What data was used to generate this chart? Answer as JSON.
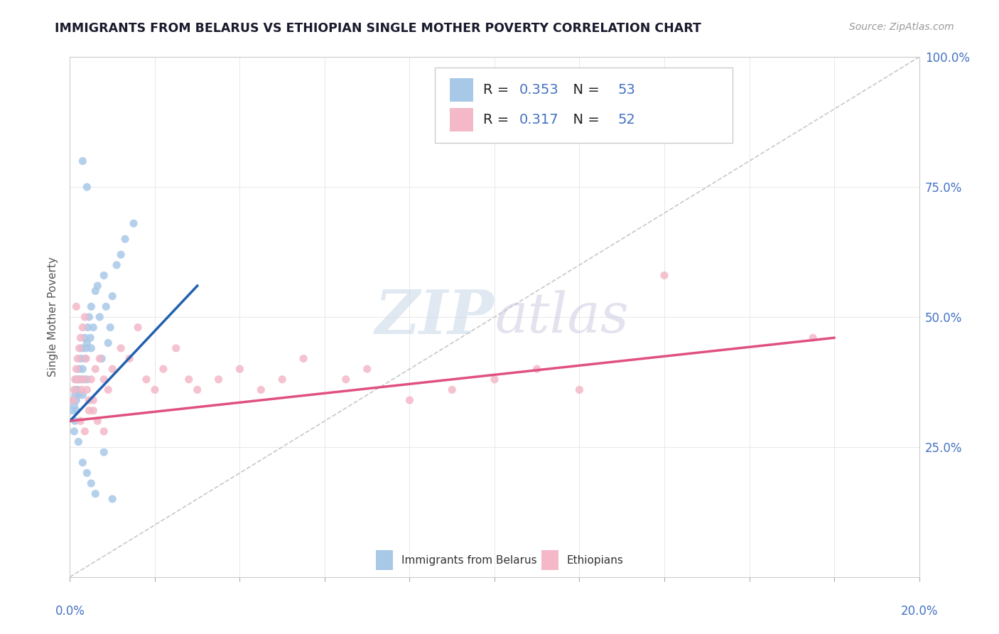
{
  "title": "IMMIGRANTS FROM BELARUS VS ETHIOPIAN SINGLE MOTHER POVERTY CORRELATION CHART",
  "source": "Source: ZipAtlas.com",
  "ylabel": "Single Mother Poverty",
  "legend_label1": "Immigrants from Belarus",
  "legend_label2": "Ethiopians",
  "r1": 0.353,
  "n1": 53,
  "r2": 0.317,
  "n2": 52,
  "color_blue": "#a8c8e8",
  "color_pink": "#f4b8c8",
  "color_blue_line": "#2060b0",
  "color_pink_line": "#e05080",
  "color_ref_line": "#c8c8c8",
  "xlim": [
    0.0,
    20.0
  ],
  "ylim": [
    0.0,
    100.0
  ],
  "blue_line_x": [
    0.0,
    3.0
  ],
  "blue_line_y": [
    30.0,
    56.0
  ],
  "pink_line_x": [
    0.0,
    18.0
  ],
  "pink_line_y": [
    30.0,
    46.0
  ],
  "ref_line_x": [
    0.0,
    20.0
  ],
  "ref_line_y": [
    0.0,
    100.0
  ],
  "blue_scatter_x": [
    0.05,
    0.08,
    0.1,
    0.12,
    0.12,
    0.14,
    0.15,
    0.15,
    0.15,
    0.18,
    0.2,
    0.2,
    0.22,
    0.25,
    0.25,
    0.28,
    0.3,
    0.3,
    0.32,
    0.35,
    0.35,
    0.38,
    0.4,
    0.4,
    0.42,
    0.45,
    0.48,
    0.5,
    0.5,
    0.55,
    0.6,
    0.65,
    0.7,
    0.75,
    0.8,
    0.85,
    0.9,
    0.95,
    1.0,
    1.1,
    1.2,
    1.3,
    1.5,
    0.1,
    0.2,
    0.3,
    0.4,
    0.5,
    0.6,
    0.8,
    1.0,
    0.3,
    0.4
  ],
  "blue_scatter_y": [
    32,
    34,
    33,
    35,
    30,
    36,
    34,
    38,
    32,
    36,
    38,
    35,
    40,
    42,
    38,
    44,
    40,
    35,
    38,
    42,
    46,
    44,
    45,
    38,
    48,
    50,
    46,
    52,
    44,
    48,
    55,
    56,
    50,
    42,
    58,
    52,
    45,
    48,
    54,
    60,
    62,
    65,
    68,
    28,
    26,
    22,
    20,
    18,
    16,
    24,
    15,
    80,
    75
  ],
  "pink_scatter_x": [
    0.08,
    0.1,
    0.12,
    0.15,
    0.18,
    0.2,
    0.22,
    0.25,
    0.28,
    0.3,
    0.32,
    0.35,
    0.38,
    0.4,
    0.45,
    0.5,
    0.55,
    0.6,
    0.7,
    0.8,
    0.9,
    1.0,
    1.2,
    1.4,
    1.6,
    1.8,
    2.0,
    2.2,
    2.5,
    2.8,
    3.0,
    3.5,
    4.0,
    4.5,
    5.0,
    5.5,
    6.5,
    7.0,
    8.0,
    9.0,
    10.0,
    11.0,
    12.0,
    0.15,
    0.25,
    0.35,
    0.45,
    0.55,
    0.65,
    0.8,
    17.5,
    14.0
  ],
  "pink_scatter_y": [
    34,
    36,
    38,
    40,
    42,
    38,
    44,
    46,
    36,
    48,
    38,
    50,
    42,
    36,
    34,
    38,
    32,
    40,
    42,
    38,
    36,
    40,
    44,
    42,
    48,
    38,
    36,
    40,
    44,
    38,
    36,
    38,
    40,
    36,
    38,
    42,
    38,
    40,
    34,
    36,
    38,
    40,
    36,
    52,
    30,
    28,
    32,
    34,
    30,
    28,
    46,
    58
  ]
}
